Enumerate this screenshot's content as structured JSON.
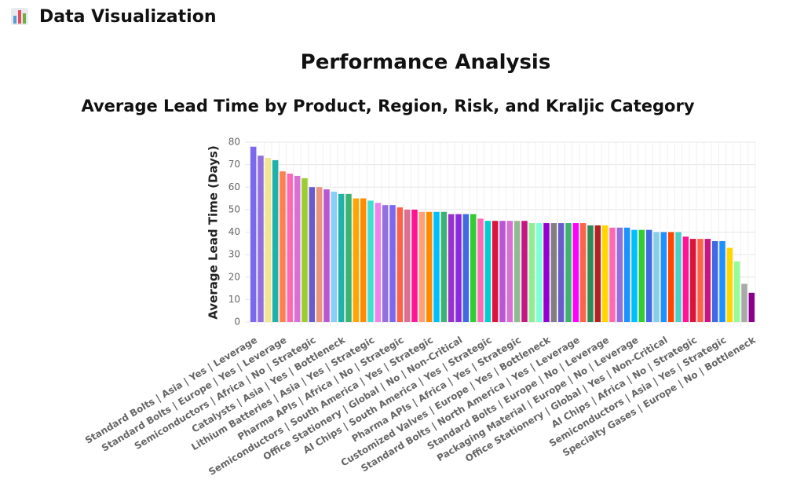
{
  "header": {
    "title": "Data Visualization"
  },
  "heading": "Performance Analysis",
  "chart_data": {
    "type": "bar",
    "title": "Average Lead Time by Product, Region, Risk, and Kraljic Category",
    "y_label": "Average Lead Time (Days)",
    "categories": [
      "Standard Bolts | Asia | Yes | Leverage",
      null,
      null,
      null,
      "Standard Bolts | Europe | Yes | Leverage",
      null,
      null,
      null,
      "Semiconductors | Africa | No | Strategic",
      null,
      null,
      null,
      "Catalysts | Asia | Yes | Bottleneck",
      null,
      null,
      null,
      "Lithium Batteries | Asia | Yes | Strategic",
      null,
      null,
      null,
      "Pharma APIs | Africa | No | Strategic",
      null,
      null,
      null,
      "Semiconductors | South America | Yes | Strategic",
      null,
      null,
      null,
      "Office Stationery | Global | No | Non-Critical",
      null,
      null,
      null,
      "AI Chips | South America | Yes | Strategic",
      null,
      null,
      null,
      "Pharma APIs | Africa | Yes | Strategic",
      null,
      null,
      null,
      "Customized Valves | Europe | Yes | Bottleneck",
      null,
      null,
      null,
      "Standard Bolts | North America | Yes | Leverage",
      null,
      null,
      null,
      "Standard Bolts | Europe | No | Leverage",
      null,
      null,
      null,
      "Packaging Material | Europe | No | Leverage",
      null,
      null,
      null,
      "Office Stationery | Global | Yes | Non-Critical",
      null,
      null,
      null,
      "AI Chips | Africa | No | Strategic",
      null,
      null,
      null,
      "Semiconductors | Asia | Yes | Strategic",
      null,
      null,
      null,
      "Specialty Gases | Europe | No | Bottleneck"
    ],
    "values": [
      78,
      74,
      73,
      72,
      67,
      66,
      65,
      64,
      60,
      60,
      59,
      58,
      57,
      57,
      55,
      55,
      54,
      53,
      52,
      52,
      51,
      50,
      50,
      49,
      49,
      49,
      49,
      48,
      48,
      48,
      48,
      46,
      45,
      45,
      45,
      45,
      45,
      45,
      44,
      44,
      44,
      44,
      44,
      44,
      44,
      44,
      43,
      43,
      43,
      42,
      42,
      42,
      41,
      41,
      41,
      40,
      40,
      40,
      40,
      38,
      37,
      37,
      37,
      36,
      36,
      33,
      27,
      17,
      13
    ],
    "colors": [
      "#7b68ee",
      "#9370db",
      "#f0e68c",
      "#20b2aa",
      "#ff7f50",
      "#ff69b4",
      "#da70d6",
      "#9acd32",
      "#6a5acd",
      "#e9967a",
      "#ba55d3",
      "#87cefa",
      "#20b2aa",
      "#3cb371",
      "#ffa500",
      "#ff8c00",
      "#40e0d0",
      "#ee82ee",
      "#9370db",
      "#7b68ee",
      "#ff6347",
      "#db7093",
      "#ff1493",
      "#ffa07a",
      "#ff8c00",
      "#00bfff",
      "#3cb371",
      "#9932cc",
      "#8a2be2",
      "#4169e1",
      "#32cd32",
      "#ff69b4",
      "#00ced1",
      "#dc143c",
      "#ba55d3",
      "#da70d6",
      "#8fbc8f",
      "#c71585",
      "#90ee90",
      "#7fffd4",
      "#9400d3",
      "#808080",
      "#6a5acd",
      "#3cb371",
      "#ff00ff",
      "#ff6347",
      "#2e8b57",
      "#b22222",
      "#ffd700",
      "#ff69b4",
      "#9370db",
      "#1e90ff",
      "#00bfff",
      "#32cd32",
      "#4169e1",
      "#87ceeb",
      "#1e90ff",
      "#ff4500",
      "#48d1cc",
      "#ff1493",
      "#dc143c",
      "#ff6347",
      "#c71585",
      "#4169e1",
      "#1e90ff",
      "#ffd700",
      "#98fb98",
      "#a9a9a9",
      "#8b008b"
    ],
    "ylim": [
      0,
      80
    ],
    "yticks": [
      0,
      10,
      20,
      30,
      40,
      50,
      60,
      70,
      80
    ],
    "grid": true
  }
}
